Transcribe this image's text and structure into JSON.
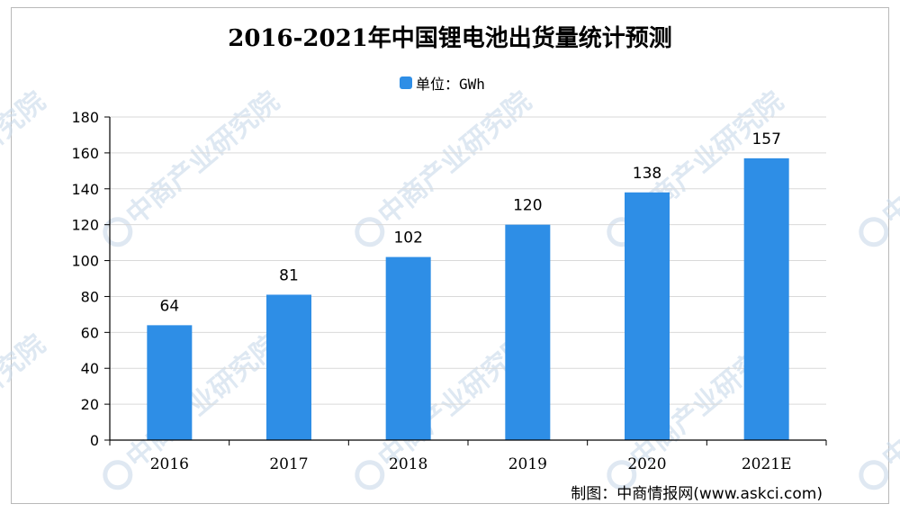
{
  "chart_data": {
    "type": "bar",
    "title": "2016-2021年中国锂电池出货量统计预测",
    "legend": "单位：GWh",
    "categories": [
      "2016",
      "2017",
      "2018",
      "2019",
      "2020",
      "2021E"
    ],
    "values": [
      64,
      81,
      102,
      120,
      138,
      157
    ],
    "data_labels": [
      "64",
      "81",
      "102",
      "120",
      "138",
      "157"
    ],
    "y_ticks": [
      "0",
      "20",
      "40",
      "60",
      "80",
      "100",
      "120",
      "140",
      "160",
      "180"
    ],
    "ylim": [
      0,
      180
    ],
    "grid": true,
    "legend_position": "top-center",
    "bar_color": "#2e8ee6",
    "grid_color": "#d9d9d9",
    "axis_color": "#000000"
  },
  "source_credit": "制图：中商情报网(www.askci.com)",
  "watermark_text": "中商产业研究院",
  "watermark_color": "#c9d9ea"
}
